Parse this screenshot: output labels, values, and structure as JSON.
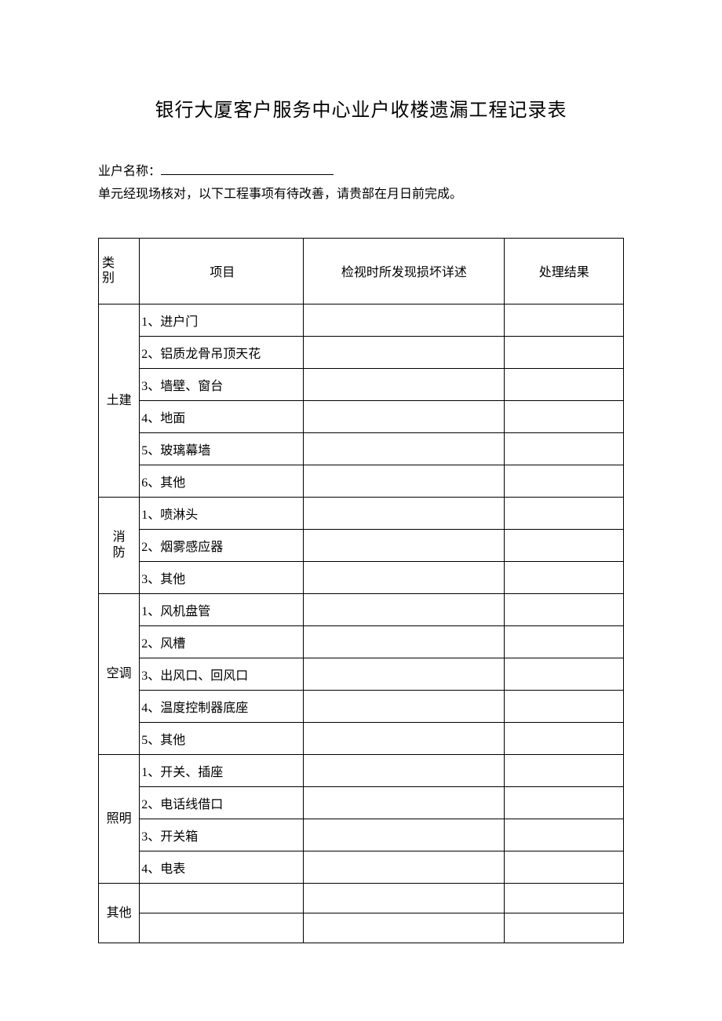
{
  "title": "银行大厦客户服务中心业户收楼遗漏工程记录表",
  "header": {
    "name_label": "业户名称：",
    "instruction": "单元经现场核对，以下工程事项有待改善，请贵部在月日前完成。"
  },
  "table": {
    "columns": {
      "category": "类别",
      "item": "项目",
      "detail": "检视时所发现损坏详述",
      "result": "处理结果"
    },
    "col_widths": {
      "category": 50,
      "item": 200,
      "detail": 245,
      "result": 145
    },
    "header_row_height": 84,
    "data_row_height": 38,
    "sections": [
      {
        "category": "土建",
        "items": [
          "1、进户门",
          "2、铝质龙骨吊顶天花",
          "3、墙壁、窗台",
          "4、地面",
          "5、玻璃幕墙",
          "6、其他"
        ]
      },
      {
        "category": "消防",
        "items": [
          "1、喷淋头",
          "2、烟雾感应器",
          "3、其他"
        ]
      },
      {
        "category": "空调",
        "items": [
          "1、风机盘管",
          "2、风槽",
          "3、出风口、回风口",
          "4、温度控制器底座",
          "5、其他"
        ]
      },
      {
        "category": "照明",
        "items": [
          "1、开关、插座",
          "2、电话线借口",
          "3、开关箱",
          "4、电表"
        ]
      },
      {
        "category": "其他",
        "items": [
          "",
          ""
        ]
      }
    ]
  },
  "style": {
    "background_color": "#ffffff",
    "border_color": "#000000",
    "font_family": "SimSun",
    "title_fontsize": 24,
    "body_fontsize": 16
  }
}
